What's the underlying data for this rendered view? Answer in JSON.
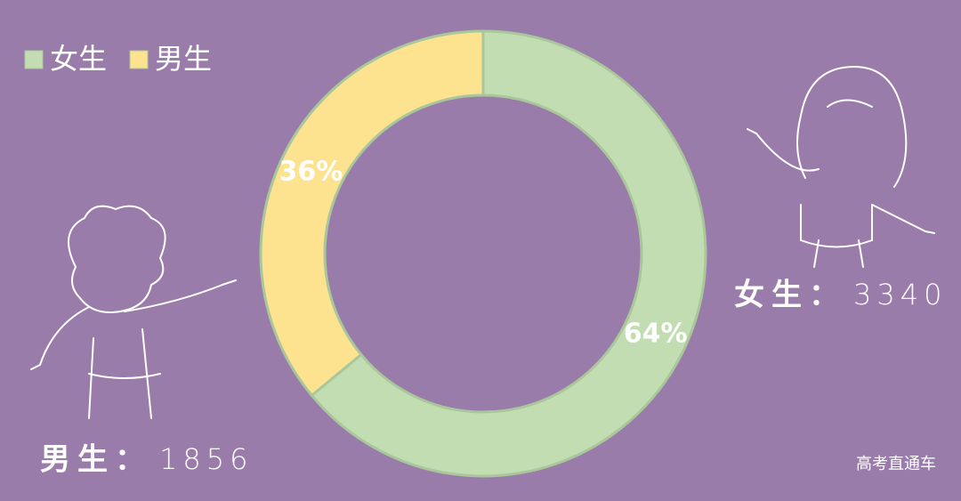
{
  "chart_data": {
    "type": "donut",
    "categories": [
      "女生",
      "男生"
    ],
    "values": [
      64,
      36
    ],
    "value_labels": [
      "64%",
      "36%"
    ],
    "colors": [
      "#c3ddb3",
      "#fde28f"
    ],
    "legend": "top-left",
    "annotations": [
      {
        "label": "女生：",
        "count": 3340
      },
      {
        "label": "男生：",
        "count": 1856
      }
    ],
    "source": "高考直通车"
  }
}
